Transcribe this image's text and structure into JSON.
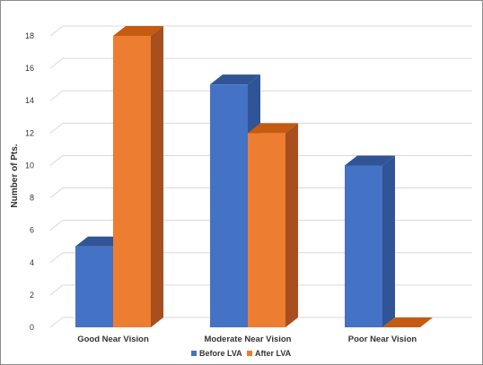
{
  "chart_data": {
    "type": "bar",
    "title": "",
    "xlabel": "",
    "ylabel": "Number of Pts.",
    "ylim": [
      0,
      18
    ],
    "yticks": [
      0,
      2,
      4,
      6,
      8,
      10,
      12,
      14,
      16,
      18
    ],
    "grid": true,
    "legend_position": "bottom",
    "categories": [
      "Good Near Vision",
      "Moderate Near Vision",
      "Poor Near Vision"
    ],
    "series": [
      {
        "name": "Before LVA",
        "values": [
          5,
          15,
          10
        ],
        "color": "#4472C4",
        "side_color": "#2F5597",
        "top_color": "#305496"
      },
      {
        "name": "After LVA",
        "values": [
          18,
          12,
          0
        ],
        "color": "#ED7D31",
        "side_color": "#A94E1E",
        "top_color": "#C55A11"
      }
    ]
  }
}
